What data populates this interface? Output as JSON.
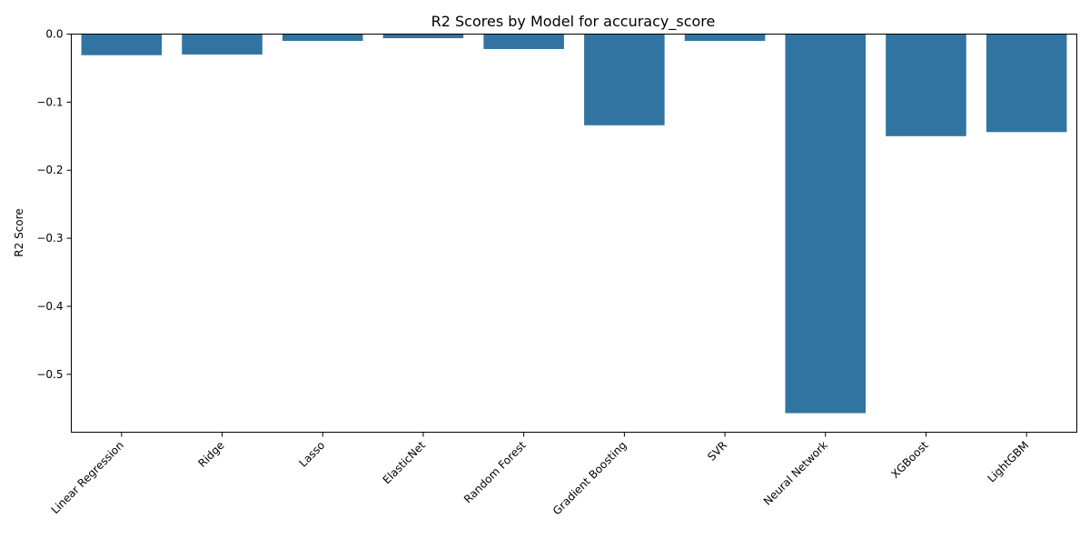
{
  "chart_data": {
    "type": "bar",
    "title": "R2 Scores by Model for accuracy_score",
    "xlabel": "",
    "ylabel": "R2 Score",
    "categories": [
      "Linear Regression",
      "Ridge",
      "Lasso",
      "ElasticNet",
      "Random Forest",
      "Gradient Boosting",
      "SVR",
      "Neural Network",
      "XGBoost",
      "LightGBM"
    ],
    "values": [
      -0.031,
      -0.03,
      -0.01,
      -0.006,
      -0.022,
      -0.134,
      -0.01,
      -0.557,
      -0.15,
      -0.144
    ],
    "ylim": [
      -0.585,
      0.0
    ],
    "yticks": [
      0.0,
      -0.1,
      -0.2,
      -0.3,
      -0.4,
      -0.5
    ],
    "ytick_labels": [
      "0.0",
      "−0.1",
      "−0.2",
      "−0.3",
      "−0.4",
      "−0.5"
    ],
    "grid": false,
    "bar_color": "#3274a1"
  }
}
